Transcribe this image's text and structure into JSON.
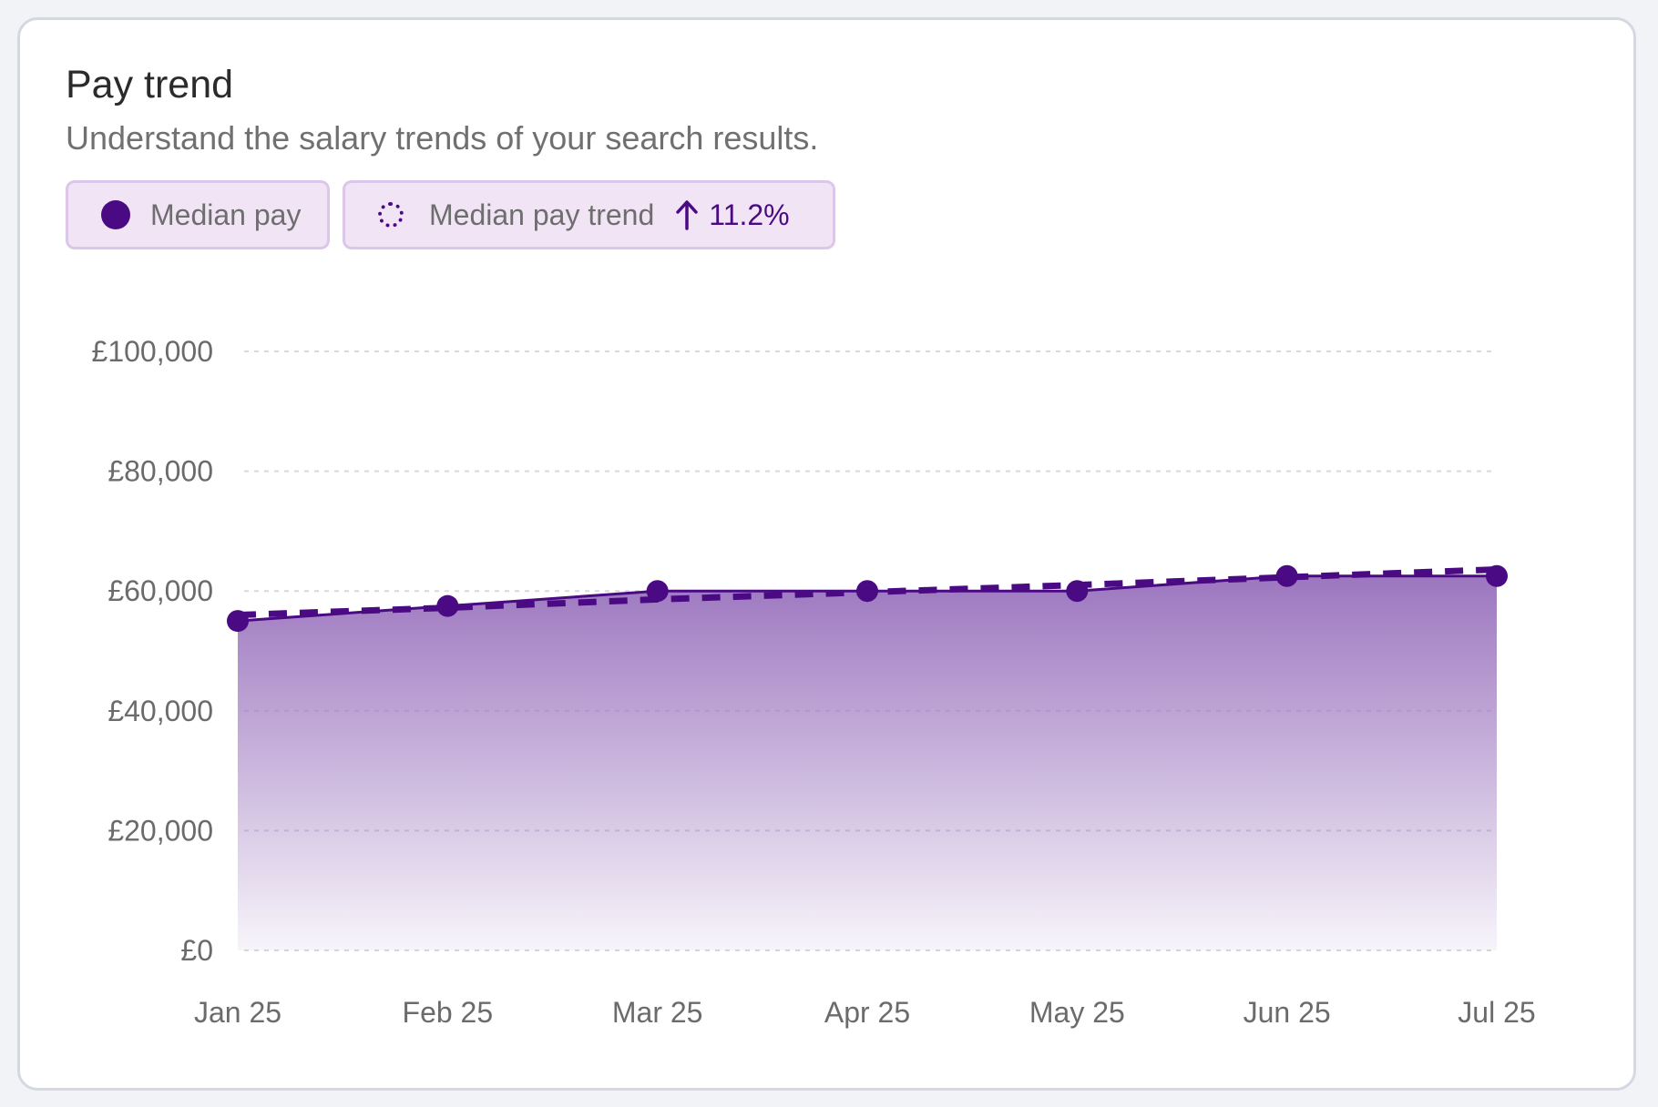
{
  "card": {
    "title": "Pay trend",
    "subtitle": "Understand the salary trends of your search results."
  },
  "legend": {
    "median_pay_label": "Median pay",
    "trend_label": "Median pay trend",
    "trend_change": "11.2%",
    "trend_direction_icon": "arrow-up-icon"
  },
  "colors": {
    "primary": "#4a0a84",
    "area_top": "#9c76bf",
    "chip_bg": "#f0e4f5",
    "grid": "#d9d9d9"
  },
  "chart_data": {
    "type": "area",
    "title": "Pay trend",
    "categories": [
      "Jan 25",
      "Feb 25",
      "Mar 25",
      "Apr 25",
      "May 25",
      "Jun 25",
      "Jul 25"
    ],
    "series": [
      {
        "name": "Median pay",
        "values": [
          55000,
          57500,
          60000,
          60000,
          60000,
          62500,
          62500
        ],
        "style": "solid line with markers and gradient fill"
      },
      {
        "name": "Median pay trend",
        "values": [
          56000,
          57200,
          58600,
          59800,
          61000,
          62300,
          63600
        ],
        "style": "dashed line"
      }
    ],
    "ylim": [
      0,
      100000
    ],
    "yticks": [
      0,
      20000,
      40000,
      60000,
      80000,
      100000
    ],
    "ytick_labels": [
      "£0",
      "£20,000",
      "£40,000",
      "£60,000",
      "£80,000",
      "£100,000"
    ],
    "grid": true,
    "legend_position": "top-left",
    "xlabel": "",
    "ylabel": ""
  }
}
